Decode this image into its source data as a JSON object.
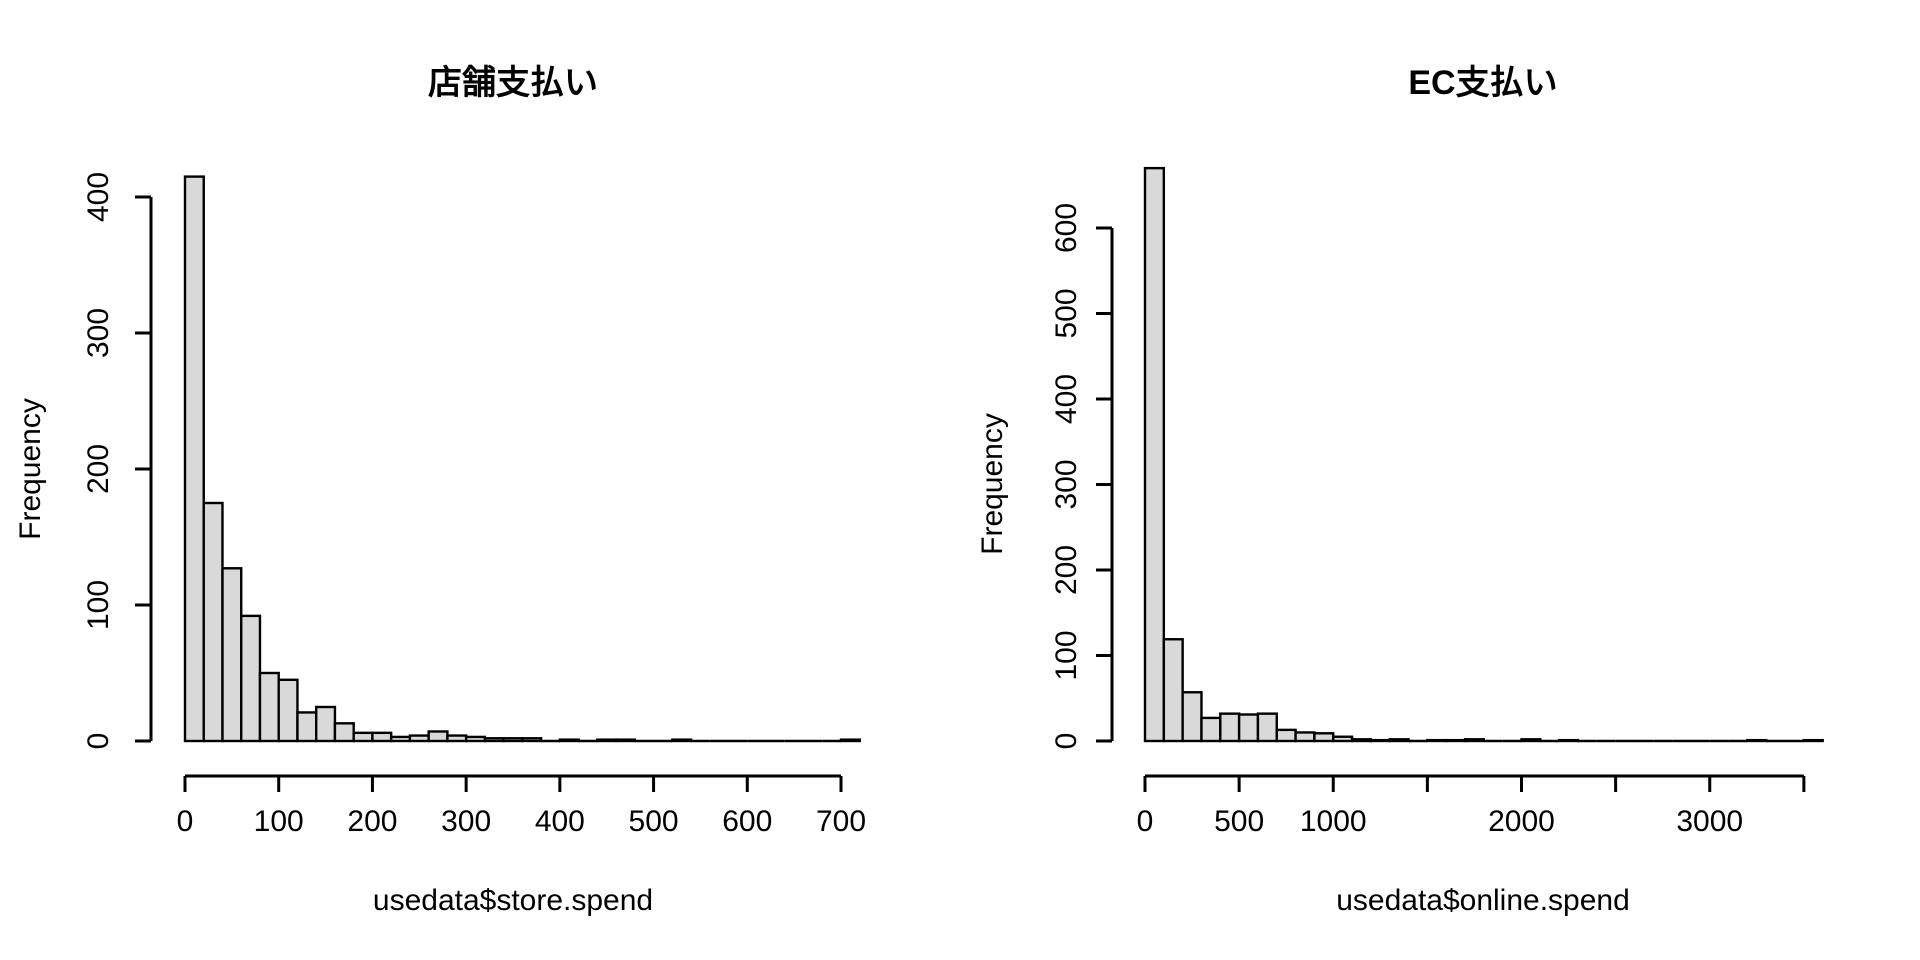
{
  "figure": {
    "background": "#ffffff",
    "bar_fill": "#d9d9d9",
    "bar_border": "#000000",
    "axis_color": "#000000",
    "text_color": "#000000"
  },
  "chart_data": [
    {
      "type": "bar",
      "chart_kind": "histogram",
      "title": "店舗支払い",
      "xlabel": "usedata$store.spend",
      "ylabel": "Frequency",
      "grid": false,
      "legend": "none",
      "bin_start": 0,
      "bin_width": 20,
      "xlim": [
        0,
        720
      ],
      "ylim": [
        0,
        415
      ],
      "values": [
        415,
        175,
        127,
        92,
        50,
        45,
        21,
        25,
        13,
        6,
        6,
        3,
        4,
        7,
        4,
        3,
        2,
        2,
        2,
        0,
        1,
        0,
        1,
        1,
        0,
        0,
        1,
        0,
        0,
        0,
        0,
        0,
        0,
        0,
        0,
        1
      ],
      "x_ticks": [
        {
          "value": 0,
          "label": "0"
        },
        {
          "value": 100,
          "label": "100"
        },
        {
          "value": 200,
          "label": "200"
        },
        {
          "value": 300,
          "label": "300"
        },
        {
          "value": 400,
          "label": "400"
        },
        {
          "value": 500,
          "label": "500"
        },
        {
          "value": 600,
          "label": "600"
        },
        {
          "value": 700,
          "label": "700"
        }
      ],
      "y_ticks": [
        {
          "value": 0,
          "label": "0"
        },
        {
          "value": 100,
          "label": "100"
        },
        {
          "value": 200,
          "label": "200"
        },
        {
          "value": 300,
          "label": "300"
        },
        {
          "value": 400,
          "label": "400"
        }
      ]
    },
    {
      "type": "bar",
      "chart_kind": "histogram",
      "title": "EC支払い",
      "xlabel": "usedata$online.spend",
      "ylabel": "Frequency",
      "grid": false,
      "legend": "none",
      "bin_start": 0,
      "bin_width": 100,
      "xlim": [
        0,
        3600
      ],
      "ylim": [
        0,
        670
      ],
      "values": [
        670,
        119,
        57,
        27,
        32,
        31,
        32,
        13,
        10,
        9,
        5,
        2,
        1,
        2,
        0,
        1,
        1,
        2,
        0,
        0,
        2,
        0,
        1,
        0,
        0,
        0,
        0,
        0,
        0,
        0,
        0,
        0,
        1,
        0,
        0,
        1
      ],
      "x_ticks": [
        {
          "value": 0,
          "label": "0"
        },
        {
          "value": 500,
          "label": "500"
        },
        {
          "value": 1000,
          "label": "1000"
        },
        {
          "value": 1500,
          "label": ""
        },
        {
          "value": 2000,
          "label": "2000"
        },
        {
          "value": 2500,
          "label": ""
        },
        {
          "value": 3000,
          "label": "3000"
        },
        {
          "value": 3500,
          "label": ""
        }
      ],
      "y_ticks": [
        {
          "value": 0,
          "label": "0"
        },
        {
          "value": 100,
          "label": "100"
        },
        {
          "value": 200,
          "label": "200"
        },
        {
          "value": 300,
          "label": "300"
        },
        {
          "value": 400,
          "label": "400"
        },
        {
          "value": 500,
          "label": "500"
        },
        {
          "value": 600,
          "label": "600"
        }
      ]
    }
  ]
}
